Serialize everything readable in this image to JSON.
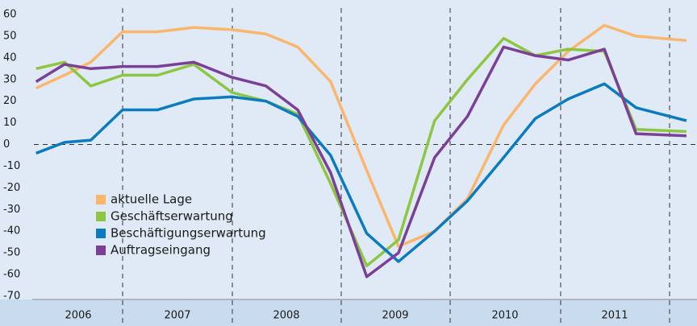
{
  "chart_data": {
    "type": "line",
    "x": [
      2006.21,
      2006.47,
      2006.71,
      2007.0,
      2007.32,
      2007.65,
      2008.0,
      2008.31,
      2008.6,
      2008.9,
      2009.23,
      2009.52,
      2009.85,
      2010.15,
      2010.48,
      2010.77,
      2011.07,
      2011.4,
      2011.69,
      2012.15
    ],
    "xlim": [
      2006.19,
      2012.18
    ],
    "year_labels": [
      "2006",
      "2007",
      "2008",
      "2009",
      "2010",
      "2011"
    ],
    "series": [
      {
        "name": "aktuelle Lage",
        "color": "#f9b66c",
        "values": [
          26,
          32,
          38,
          52,
          52,
          54,
          53,
          51,
          45,
          29,
          -12,
          -47,
          -40,
          -25,
          9,
          28,
          43,
          55,
          50,
          48
        ]
      },
      {
        "name": "Geschäftserwartung",
        "color": "#8dc641",
        "values": [
          35,
          38,
          27,
          32,
          32,
          37,
          24,
          20,
          14,
          -18,
          -56,
          -44,
          11,
          30,
          49,
          41,
          44,
          43,
          7,
          6
        ]
      },
      {
        "name": "Beschäftigungserwartung",
        "color": "#0b7bc0",
        "values": [
          -4,
          1,
          2,
          16,
          16,
          21,
          22,
          20,
          13,
          -5,
          -41,
          -54,
          -40,
          -26,
          -6,
          12,
          21,
          28,
          17,
          11
        ]
      },
      {
        "name": "Auftragseingang",
        "color": "#7c3f98",
        "values": [
          29,
          37,
          35,
          36,
          36,
          38,
          31,
          27,
          16,
          -13,
          -61,
          -50,
          -6,
          13,
          45,
          41,
          39,
          44,
          5,
          4
        ]
      }
    ],
    "ylim": [
      -70,
      60
    ],
    "yticks": [
      -70,
      -60,
      -50,
      -40,
      -30,
      -20,
      -10,
      0,
      10,
      20,
      30,
      40,
      50,
      60
    ]
  }
}
